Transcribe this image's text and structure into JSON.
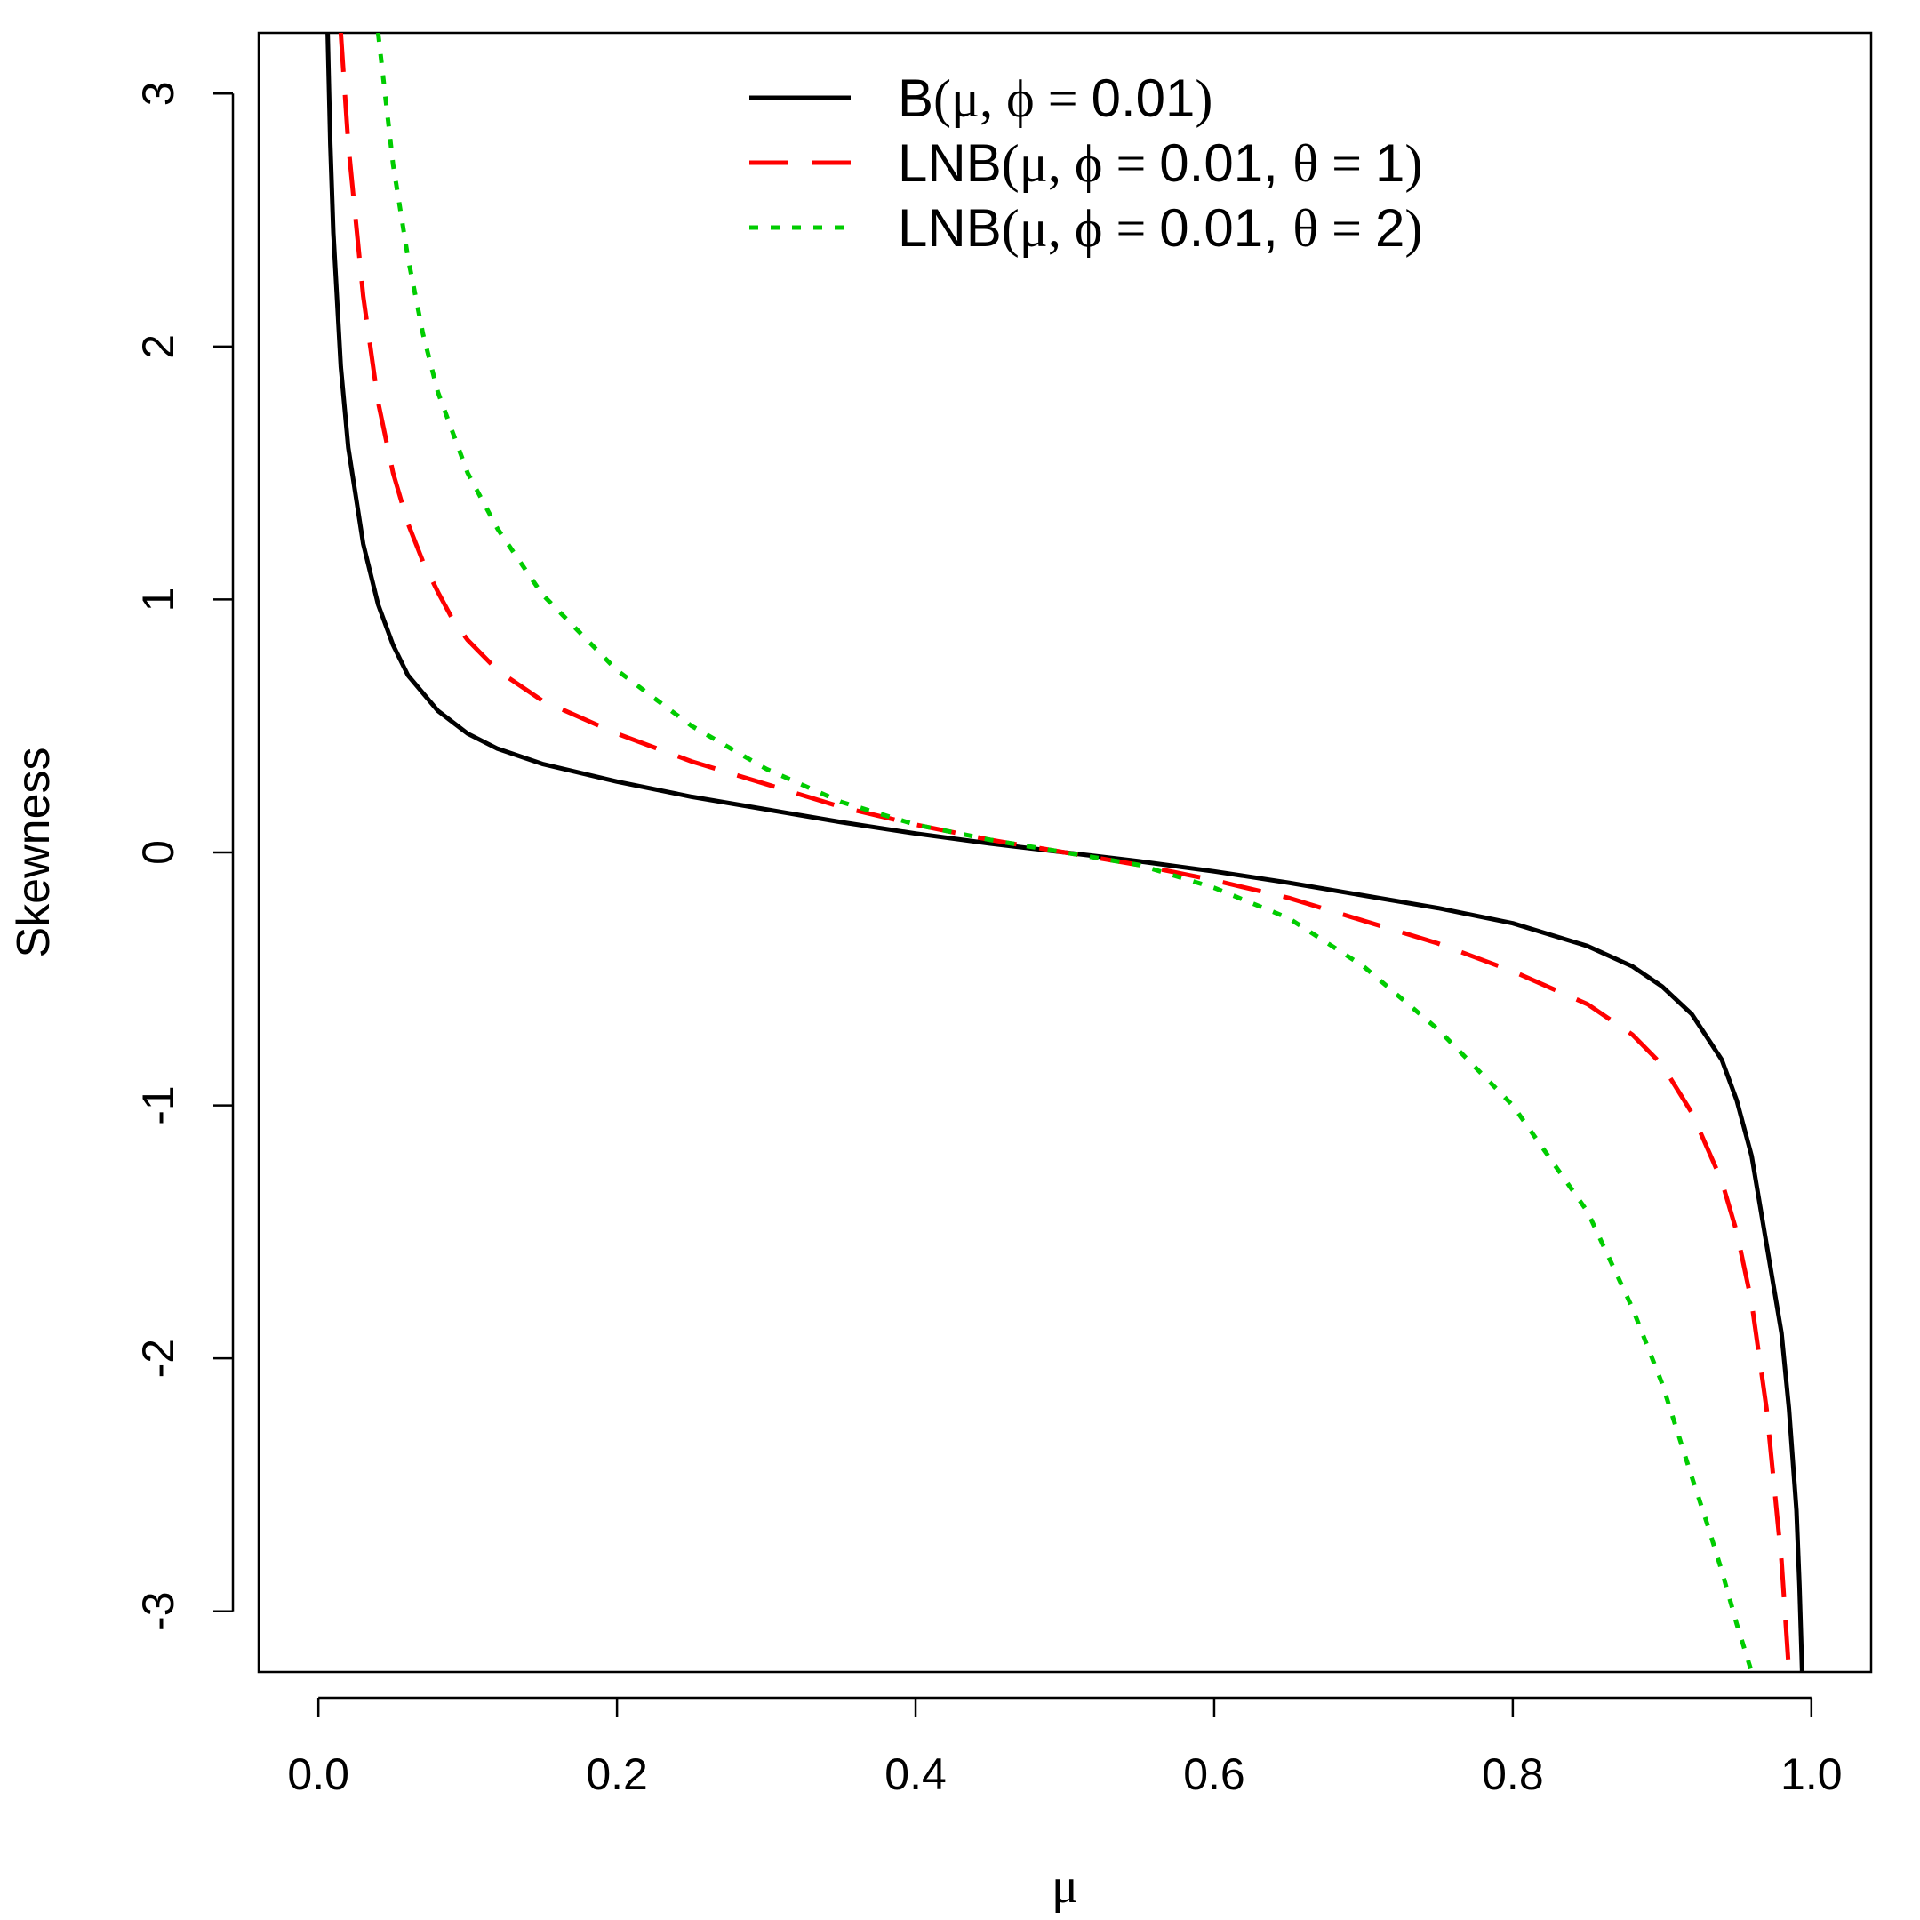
{
  "chart_data": {
    "type": "line",
    "title": "",
    "xlabel": "μ",
    "ylabel": "Skewness",
    "xlim": [
      -0.04,
      1.04
    ],
    "ylim": [
      -3.24,
      3.24
    ],
    "x_ticks": [
      0.0,
      0.2,
      0.4,
      0.6,
      0.8,
      1.0
    ],
    "x_tick_labels": [
      "0.0",
      "0.2",
      "0.4",
      "0.6",
      "0.8",
      "1.0"
    ],
    "y_ticks": [
      -3,
      -2,
      -1,
      0,
      1,
      2,
      3
    ],
    "y_tick_labels": [
      "-3",
      "-2",
      "-1",
      "0",
      "1",
      "2",
      "3"
    ],
    "grid": false,
    "legend_position": "top-center",
    "series": [
      {
        "name": "B(μ, ϕ = 0.01)",
        "label_parts": [
          "B",
          "(",
          "μ, ϕ = ",
          "0.01",
          ")"
        ],
        "color": "#000000",
        "dash": "solid",
        "x": [
          0.0062,
          0.008,
          0.01,
          0.015,
          0.02,
          0.03,
          0.04,
          0.05,
          0.06,
          0.08,
          0.1,
          0.12,
          0.15,
          0.2,
          0.25,
          0.3,
          0.35,
          0.4,
          0.45,
          0.5,
          0.55,
          0.6,
          0.65,
          0.7,
          0.75,
          0.8,
          0.85,
          0.88,
          0.9,
          0.92,
          0.94,
          0.95,
          0.96,
          0.97,
          0.98,
          0.985,
          0.99,
          0.992,
          0.9938
        ],
        "y": [
          3.24,
          2.8,
          2.45,
          1.92,
          1.6,
          1.22,
          0.98,
          0.82,
          0.7,
          0.56,
          0.47,
          0.41,
          0.35,
          0.28,
          0.22,
          0.17,
          0.12,
          0.075,
          0.035,
          0.0,
          -0.035,
          -0.075,
          -0.12,
          -0.17,
          -0.22,
          -0.28,
          -0.37,
          -0.45,
          -0.53,
          -0.64,
          -0.82,
          -0.98,
          -1.2,
          -1.55,
          -1.9,
          -2.2,
          -2.6,
          -2.9,
          -3.24
        ]
      },
      {
        "name": "LNB(μ, ϕ = 0.01, θ = 1)",
        "label_parts": [
          "LNB",
          "(",
          "μ, ϕ = ",
          "0.01, ",
          "θ = ",
          "1",
          ")"
        ],
        "color": "#ff0000",
        "dash": "dashed",
        "x": [
          0.015,
          0.02,
          0.03,
          0.04,
          0.05,
          0.06,
          0.07,
          0.08,
          0.09,
          0.1,
          0.12,
          0.15,
          0.2,
          0.25,
          0.3,
          0.35,
          0.4,
          0.45,
          0.5,
          0.55,
          0.6,
          0.65,
          0.7,
          0.75,
          0.8,
          0.85,
          0.88,
          0.9,
          0.92,
          0.94,
          0.95,
          0.96,
          0.97,
          0.975,
          0.98,
          0.985
        ],
        "y": [
          3.24,
          2.8,
          2.2,
          1.78,
          1.5,
          1.3,
          1.15,
          1.03,
          0.92,
          0.84,
          0.72,
          0.6,
          0.47,
          0.36,
          0.27,
          0.18,
          0.11,
          0.05,
          0.0,
          -0.05,
          -0.11,
          -0.18,
          -0.27,
          -0.36,
          -0.47,
          -0.6,
          -0.72,
          -0.84,
          -1.03,
          -1.3,
          -1.5,
          -1.78,
          -2.2,
          -2.5,
          -2.8,
          -3.24
        ]
      },
      {
        "name": "LNB(μ, ϕ = 0.01, θ = 2)",
        "label_parts": [
          "LNB",
          "(",
          "μ, ϕ = ",
          "0.01, ",
          "θ = ",
          "2",
          ")"
        ],
        "color": "#00cc00",
        "dash": "dotted",
        "x": [
          0.04,
          0.05,
          0.06,
          0.07,
          0.08,
          0.1,
          0.12,
          0.15,
          0.2,
          0.25,
          0.3,
          0.35,
          0.4,
          0.45,
          0.5,
          0.55,
          0.6,
          0.65,
          0.7,
          0.75,
          0.8,
          0.85,
          0.88,
          0.9,
          0.92,
          0.93,
          0.94,
          0.95,
          0.96
        ],
        "y": [
          3.24,
          2.72,
          2.35,
          2.05,
          1.82,
          1.5,
          1.28,
          1.02,
          0.72,
          0.5,
          0.33,
          0.2,
          0.11,
          0.05,
          0.0,
          -0.05,
          -0.14,
          -0.26,
          -0.45,
          -0.7,
          -1.0,
          -1.42,
          -1.8,
          -2.1,
          -2.47,
          -2.65,
          -2.84,
          -3.05,
          -3.24
        ]
      }
    ]
  }
}
